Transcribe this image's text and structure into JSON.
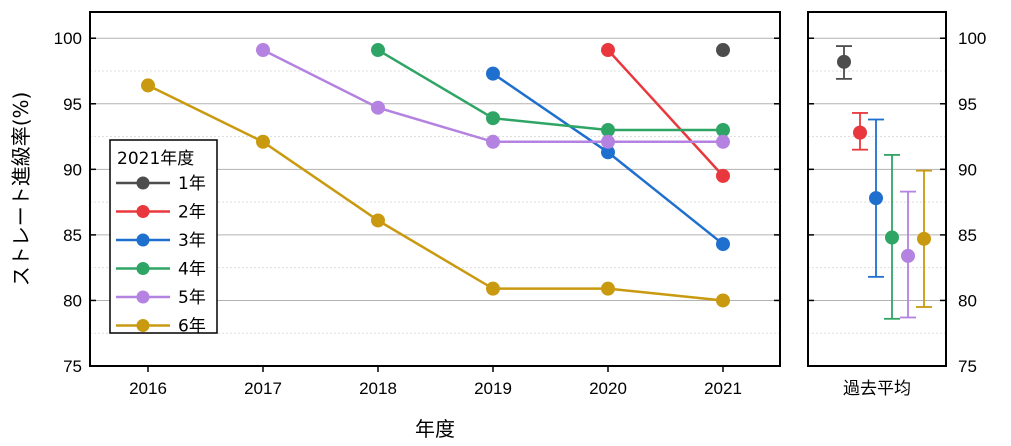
{
  "chart_data": [
    {
      "type": "line",
      "xlabel": "年度",
      "ylabel": "ストレート進級率(%)",
      "x": [
        2016,
        2017,
        2018,
        2019,
        2020,
        2021
      ],
      "x_tick_labels": [
        "2016",
        "2017",
        "2018",
        "2019",
        "2020",
        "2021"
      ],
      "ylim": [
        75,
        102
      ],
      "y_ticks": [
        75,
        80,
        85,
        90,
        95,
        100
      ],
      "y_tick_labels": [
        "75",
        "80",
        "85",
        "90",
        "95",
        "100"
      ],
      "grid": true,
      "legend": {
        "title": "2021年度",
        "placement": "left",
        "entries": [
          "1年",
          "2年",
          "3年",
          "4年",
          "5年",
          "6年"
        ]
      },
      "series": [
        {
          "name": "1年",
          "color": "#4d4d4d",
          "values": [
            null,
            null,
            null,
            null,
            null,
            99.1
          ]
        },
        {
          "name": "2年",
          "color": "#e8383d",
          "values": [
            null,
            null,
            null,
            null,
            99.1,
            89.5
          ]
        },
        {
          "name": "3年",
          "color": "#1f6fce",
          "values": [
            null,
            null,
            null,
            97.3,
            91.3,
            84.3
          ]
        },
        {
          "name": "4年",
          "color": "#2fa565",
          "values": [
            null,
            null,
            99.1,
            93.9,
            93.0,
            93.0
          ]
        },
        {
          "name": "5年",
          "color": "#b482e0",
          "values": [
            null,
            99.1,
            94.7,
            92.1,
            92.1,
            92.1
          ]
        },
        {
          "name": "6年",
          "color": "#c99a10",
          "values": [
            96.4,
            92.1,
            86.1,
            80.9,
            80.9,
            80.0
          ]
        }
      ]
    },
    {
      "type": "scatter",
      "xlabel": "過去平均",
      "ylim": [
        75,
        102
      ],
      "y_ticks": [
        75,
        80,
        85,
        90,
        95,
        100
      ],
      "y_tick_labels": [
        "75",
        "80",
        "85",
        "90",
        "95",
        "100"
      ],
      "grid": true,
      "points": [
        {
          "name": "1年",
          "color": "#4d4d4d",
          "mean": 98.2,
          "low": 96.9,
          "high": 99.4
        },
        {
          "name": "2年",
          "color": "#e8383d",
          "mean": 92.8,
          "low": 91.5,
          "high": 94.3
        },
        {
          "name": "3年",
          "color": "#1f6fce",
          "mean": 87.8,
          "low": 81.8,
          "high": 93.8
        },
        {
          "name": "4年",
          "color": "#2fa565",
          "mean": 84.8,
          "low": 78.6,
          "high": 91.1
        },
        {
          "name": "5年",
          "color": "#b482e0",
          "mean": 83.4,
          "low": 78.7,
          "high": 88.3
        },
        {
          "name": "6年",
          "color": "#c99a10",
          "mean": 84.7,
          "low": 79.5,
          "high": 89.9
        }
      ]
    }
  ]
}
